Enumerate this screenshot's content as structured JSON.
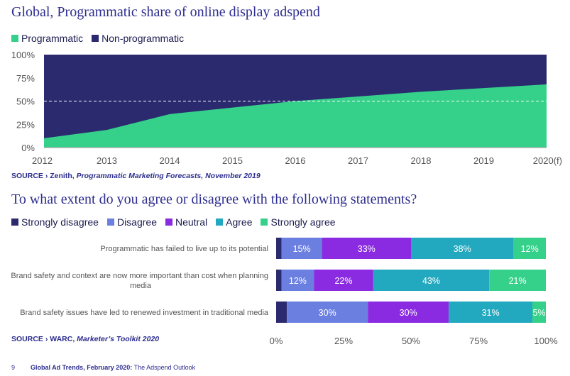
{
  "page": {
    "title1": "Global, Programmatic share of online display adspend",
    "title2": "To what extent do you agree or disagree with the following statements?",
    "source1_prefix": "SOURCE › Zenith, ",
    "source1_italic": "Programmatic Marketing Forecasts, November 2019",
    "source2_prefix": "SOURCE › WARC, ",
    "source2_italic": "Marketer’s Toolkit 2020",
    "footer_page": "9",
    "footer_bold": "Global Ad Trends, February 2020:",
    "footer_rest": " The Adspend Outlook"
  },
  "colors": {
    "programmatic": "#35d18a",
    "non_programmatic": "#2b2a6f",
    "strongly_disagree": "#2b2a6f",
    "disagree": "#6b7fe0",
    "neutral": "#8a2be2",
    "agree": "#23a9bf",
    "strongly_agree": "#35d18a"
  },
  "chart_data": [
    {
      "type": "area",
      "title": "Global, Programmatic share of online display adspend",
      "x": [
        "2012",
        "2013",
        "2014",
        "2015",
        "2016",
        "2017",
        "2018",
        "2019",
        "2020(f)"
      ],
      "series": [
        {
          "name": "Programmatic",
          "values": [
            10,
            19,
            36,
            43,
            50,
            55,
            60,
            64,
            68
          ]
        },
        {
          "name": "Non-programmatic",
          "values": [
            90,
            81,
            64,
            57,
            50,
            45,
            40,
            36,
            32
          ]
        }
      ],
      "ylim": [
        0,
        100
      ],
      "yticks": [
        "0%",
        "25%",
        "50%",
        "75%",
        "100%"
      ],
      "reference_line": 50,
      "stacked": true
    },
    {
      "type": "bar",
      "orientation": "horizontal",
      "stacked": true,
      "title": "To what extent do you agree or disagree with the following statements?",
      "categories": [
        [
          "Programmatic has failed to live up to its potential"
        ],
        [
          "Brand safety and context are now more important than cost when planning",
          "media"
        ],
        [
          "Brand safety issues have led to renewed investment in traditional media"
        ]
      ],
      "series": [
        {
          "name": "Strongly disagree",
          "values": [
            2,
            2,
            4
          ],
          "labels": [
            "",
            "",
            ""
          ]
        },
        {
          "name": "Disagree",
          "values": [
            15,
            12,
            30
          ],
          "labels": [
            "15%",
            "12%",
            "30%"
          ]
        },
        {
          "name": "Neutral",
          "values": [
            33,
            22,
            30
          ],
          "labels": [
            "33%",
            "22%",
            "30%"
          ]
        },
        {
          "name": "Agree",
          "values": [
            38,
            43,
            31
          ],
          "labels": [
            "38%",
            "43%",
            "31%"
          ]
        },
        {
          "name": "Strongly agree",
          "values": [
            12,
            21,
            5
          ],
          "labels": [
            "12%",
            "21%",
            "5%"
          ]
        }
      ],
      "xlim": [
        0,
        100
      ],
      "xticks": [
        "0%",
        "25%",
        "50%",
        "75%",
        "100%"
      ]
    }
  ]
}
